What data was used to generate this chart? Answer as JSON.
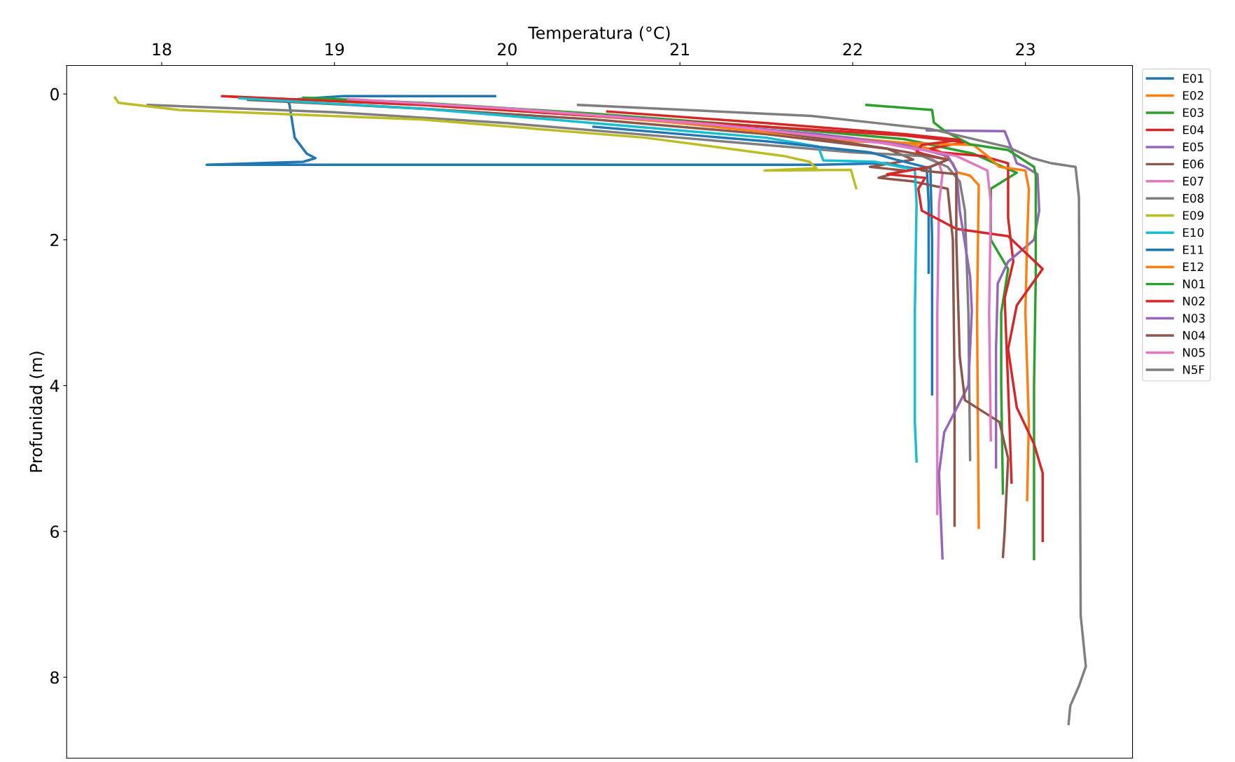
{
  "chart_data": {
    "type": "line",
    "xlabel": "Temperatura (°C)",
    "ylabel": "Profunidad (m)",
    "xlim": [
      17.45,
      23.62
    ],
    "xticks": [
      18,
      19,
      20,
      21,
      22,
      23
    ],
    "ylim": [
      9.11,
      -0.39
    ],
    "yticks": [
      0,
      2,
      4,
      6,
      8
    ],
    "grid": false,
    "legend": "right",
    "marker": "none",
    "line_style": "solid",
    "series": [
      {
        "name": "E01",
        "color": "#1f77b4",
        "x": [
          19.93,
          19.05,
          18.73,
          18.74,
          18.77,
          18.84,
          18.89,
          18.82,
          18.26,
          21.8,
          22.2,
          22.3,
          22.43,
          22.44,
          22.44
        ],
        "values": [
          0.03,
          0.03,
          0.08,
          0.15,
          0.6,
          0.82,
          0.88,
          0.93,
          0.97,
          0.97,
          0.95,
          1.0,
          1.05,
          1.5,
          2.45
        ]
      },
      {
        "name": "E02",
        "color": "#ff7f0e",
        "x": [
          18.41,
          19.5,
          20.5,
          21.5,
          22.3,
          22.5,
          22.58,
          22.6,
          22.68,
          22.73,
          22.72,
          22.73
        ],
        "values": [
          0.04,
          0.15,
          0.3,
          0.5,
          0.67,
          0.78,
          0.95,
          1.07,
          1.12,
          1.25,
          3,
          5.95
        ]
      },
      {
        "name": "E03",
        "color": "#2ca02c",
        "x": [
          18.82,
          19.5,
          20.5,
          21.5,
          22.3,
          22.7,
          22.85,
          22.95,
          22.8,
          22.8,
          22.9,
          22.86,
          22.86,
          22.87
        ],
        "values": [
          0.05,
          0.12,
          0.27,
          0.45,
          0.62,
          0.82,
          0.98,
          1.08,
          1.3,
          2.0,
          2.4,
          3.0,
          4.0,
          5.48
        ]
      },
      {
        "name": "E04",
        "color": "#d62728",
        "x": [
          18.35,
          19.5,
          20.5,
          21.5,
          22.3,
          22.65,
          22.45,
          22.5,
          22.75,
          22.9,
          22.9,
          22.9,
          22.93,
          22.88,
          22.9,
          22.92
        ],
        "values": [
          0.03,
          0.15,
          0.3,
          0.45,
          0.57,
          0.66,
          0.75,
          0.8,
          0.85,
          0.95,
          1.1,
          1.7,
          2.3,
          2.8,
          4,
          5.33
        ]
      },
      {
        "name": "E05",
        "color": "#9467bd",
        "x": [
          22.43,
          22.88,
          22.92,
          22.95,
          23.0,
          23.07,
          23.08,
          23.05,
          22.9,
          22.84,
          22.83,
          22.83
        ],
        "values": [
          0.5,
          0.51,
          0.75,
          0.95,
          1.0,
          1.1,
          1.6,
          2.0,
          2.3,
          2.6,
          3.5,
          5.12
        ]
      },
      {
        "name": "E06",
        "color": "#8c564b",
        "x": [
          18.5,
          19.5,
          20.5,
          21.5,
          22.2,
          22.35,
          22.1,
          22.3,
          22.15,
          22.35,
          22.55,
          22.58,
          22.59,
          22.59
        ],
        "values": [
          0.08,
          0.2,
          0.35,
          0.55,
          0.75,
          0.9,
          1.0,
          1.05,
          1.15,
          1.2,
          1.3,
          2,
          4,
          5.92
        ]
      },
      {
        "name": "E07",
        "color": "#e377c2",
        "x": [
          19.08,
          20,
          21,
          22,
          22.35,
          22.5,
          22.52,
          22.5,
          22.49,
          22.49
        ],
        "values": [
          0.07,
          0.2,
          0.38,
          0.6,
          0.75,
          0.95,
          1.1,
          1.5,
          3,
          5.76
        ]
      },
      {
        "name": "E08",
        "color": "#7f7f7f",
        "x": [
          17.92,
          19,
          20,
          21,
          22,
          22.4,
          22.55,
          22.62,
          22.65,
          22.67,
          22.68
        ],
        "values": [
          0.15,
          0.25,
          0.4,
          0.6,
          0.8,
          0.85,
          1.0,
          1.2,
          1.6,
          3,
          5.02
        ]
      },
      {
        "name": "E09",
        "color": "#bcbd22",
        "x": [
          17.73,
          17.75,
          18.1,
          19.5,
          20.8,
          21.6,
          21.75,
          21.79,
          21.49,
          21.99,
          22.02
        ],
        "values": [
          0.05,
          0.12,
          0.22,
          0.35,
          0.6,
          0.85,
          0.93,
          1.02,
          1.05,
          1.04,
          1.29
        ]
      },
      {
        "name": "E10",
        "color": "#17becf",
        "x": [
          18.45,
          19.5,
          20.5,
          21.5,
          21.8,
          21.83,
          22.13,
          22.36,
          22.37,
          22.36,
          22.36,
          22.37
        ],
        "values": [
          0.06,
          0.2,
          0.4,
          0.6,
          0.72,
          0.91,
          0.93,
          1.04,
          1.5,
          3,
          4.5,
          5.04
        ]
      },
      {
        "name": "E11",
        "color": "#1f77b4",
        "x": [
          20.5,
          21.5,
          22.1,
          22.25,
          22.45,
          22.46,
          22.46
        ],
        "values": [
          0.45,
          0.65,
          0.8,
          0.9,
          1.02,
          2,
          4.12
        ]
      },
      {
        "name": "E12",
        "color": "#ff7f0e",
        "x": [
          21.0,
          22.0,
          22.7,
          22.78,
          22.85,
          23.0,
          23.02,
          23.01,
          23.0,
          23.02,
          23.01
        ],
        "values": [
          0.4,
          0.65,
          0.7,
          0.85,
          1.0,
          1.05,
          1.3,
          2,
          3,
          4.5,
          5.57
        ]
      },
      {
        "name": "N01",
        "color": "#2ca02c",
        "x": [
          22.08,
          22.46,
          22.47,
          22.54,
          22.68,
          22.9,
          23.05,
          23.06,
          23.06,
          23.05,
          23.05
        ],
        "values": [
          0.15,
          0.22,
          0.39,
          0.52,
          0.69,
          0.77,
          1.0,
          1.11,
          2.5,
          4,
          6.38
        ]
      },
      {
        "name": "N02",
        "color": "#d62728",
        "x": [
          20.58,
          21.5,
          22.3,
          22.62,
          22.4,
          22.37,
          22.55,
          22.45,
          22.2,
          22.42,
          22.38,
          22.4,
          22.6,
          22.9,
          23.1,
          22.95,
          22.9,
          22.95,
          23.05,
          23.1,
          23.1
        ],
        "values": [
          0.24,
          0.4,
          0.55,
          0.63,
          0.7,
          0.8,
          0.9,
          1.0,
          1.1,
          1.15,
          1.3,
          1.6,
          1.85,
          1.95,
          2.4,
          2.9,
          3.5,
          4.3,
          4.8,
          5.2,
          6.13
        ]
      },
      {
        "name": "N03",
        "color": "#9467bd",
        "x": [
          20.6,
          21.8,
          22.3,
          22.55,
          22.6,
          22.62,
          22.68,
          22.69,
          22.67,
          22.53,
          22.5,
          22.52
        ],
        "values": [
          0.3,
          0.55,
          0.7,
          0.85,
          1.05,
          1.6,
          2.5,
          2.97,
          4.0,
          4.64,
          5.2,
          6.37
        ]
      },
      {
        "name": "N04",
        "color": "#8c564b",
        "x": [
          21.5,
          22.2,
          22.55,
          22.4,
          22.6,
          22.6,
          22.62,
          22.65,
          22.85,
          22.9,
          22.88,
          22.87
        ],
        "values": [
          0.5,
          0.75,
          0.9,
          1.05,
          1.1,
          2,
          3.6,
          4.2,
          4.5,
          5.0,
          6.0,
          6.35
        ]
      },
      {
        "name": "N05",
        "color": "#e377c2",
        "x": [
          20.0,
          21.2,
          22.2,
          22.6,
          22.78,
          22.8,
          22.79,
          22.8
        ],
        "values": [
          0.2,
          0.42,
          0.68,
          0.85,
          1.05,
          1.5,
          3,
          4.75
        ]
      },
      {
        "name": "N5F",
        "color": "#7f7f7f",
        "x": [
          20.41,
          21.76,
          22.45,
          22.9,
          23.04,
          23.15,
          23.29,
          23.31,
          23.32,
          23.35,
          23.31,
          23.26,
          23.25
        ],
        "values": [
          0.15,
          0.3,
          0.48,
          0.73,
          0.88,
          0.95,
          1.0,
          1.42,
          7.15,
          7.85,
          8.12,
          8.39,
          8.64
        ]
      }
    ]
  }
}
